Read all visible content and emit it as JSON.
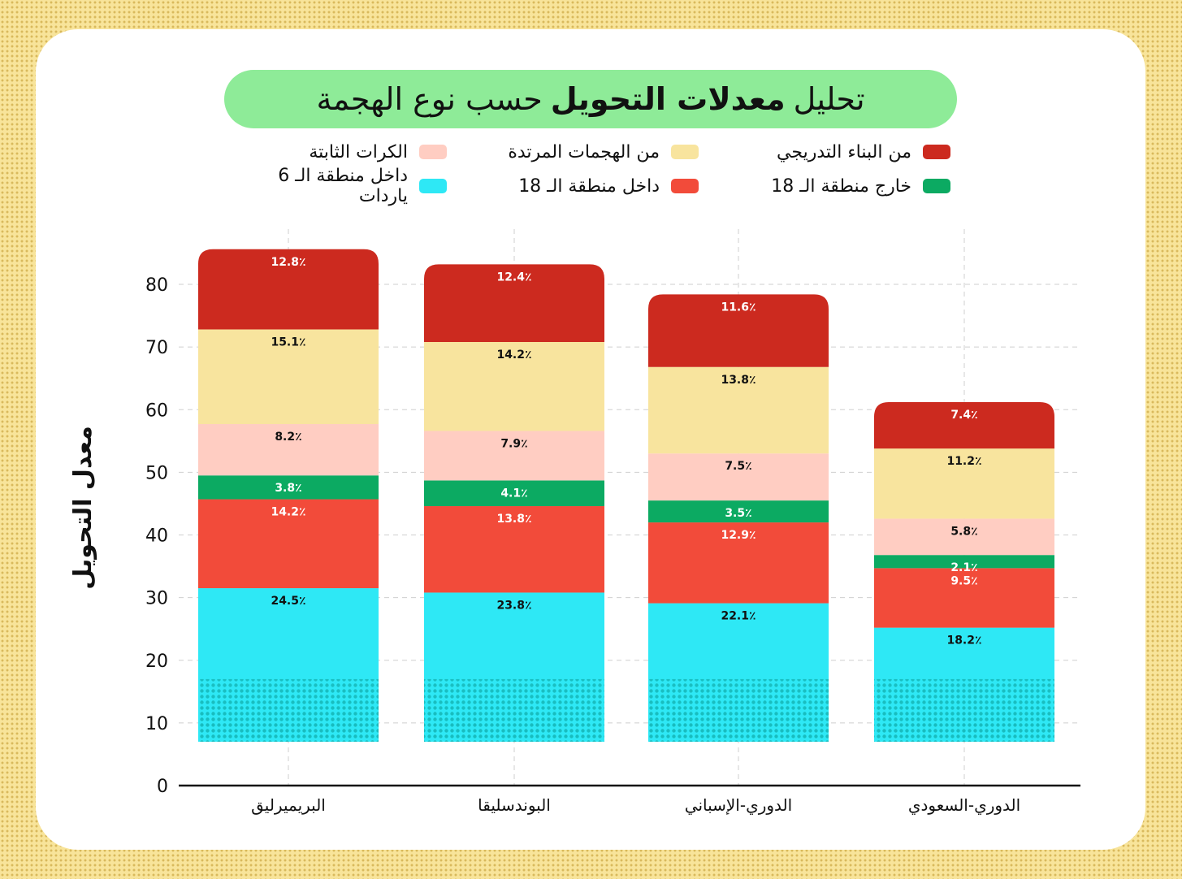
{
  "title": {
    "part1": "تحليل",
    "bold": "معدلات التحويل",
    "part2": "حسب نوع الهجمة"
  },
  "chart_data": {
    "type": "bar",
    "stacked": true,
    "ylabel": "معدل التحويل",
    "xlabel": "",
    "ylim": [
      0,
      88
    ],
    "yticks": [
      0,
      10,
      20,
      30,
      40,
      50,
      60,
      70,
      80
    ],
    "grid": true,
    "legend_position": "top",
    "categories": [
      "البريميرليق",
      "البوندسليقا",
      "الدوري-الإسباني",
      "الدوري-السعودي"
    ],
    "series": [
      {
        "name": "داخل منطقة الـ 6 ياردات",
        "color": "#2ee8f5",
        "values": [
          24.5,
          23.8,
          22.1,
          18.2
        ],
        "labels": [
          "24.5٪",
          "23.8٪",
          "22.1٪",
          "18.2٪"
        ]
      },
      {
        "name": "داخل منطقة الـ 18",
        "color": "#f24b3a",
        "values": [
          14.2,
          13.8,
          12.9,
          9.5
        ],
        "labels": [
          "14.2٪",
          "13.8٪",
          "12.9٪",
          "9.5٪"
        ]
      },
      {
        "name": "خارج منطقة الـ 18",
        "color": "#0caa62",
        "values": [
          3.8,
          4.1,
          3.5,
          2.1
        ],
        "labels": [
          "3.8٪",
          "4.1٪",
          "3.5٪",
          "2.1٪"
        ]
      },
      {
        "name": "الكرات الثابتة",
        "color": "#ffcdc2",
        "values": [
          8.2,
          7.9,
          7.5,
          5.8
        ],
        "labels": [
          "8.2٪",
          "7.9٪",
          "7.5٪",
          "5.8٪"
        ]
      },
      {
        "name": "من الهجمات المرتدة",
        "color": "#f8e49e",
        "values": [
          15.1,
          14.2,
          13.8,
          11.2
        ],
        "labels": [
          "15.1٪",
          "14.2٪",
          "13.8٪",
          "11.2٪"
        ]
      },
      {
        "name": "من البناء التدريجي",
        "color": "#cc2a1f",
        "values": [
          12.8,
          12.4,
          11.6,
          7.4
        ],
        "labels": [
          "12.8٪",
          "12.4٪",
          "11.6٪",
          "7.4٪"
        ]
      }
    ]
  }
}
